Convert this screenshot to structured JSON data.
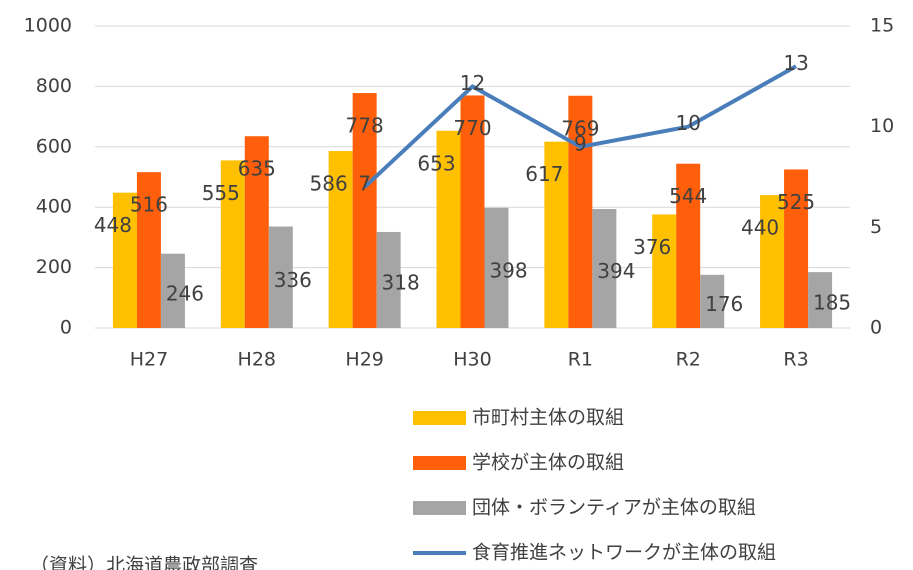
{
  "chart_data": {
    "type": "bar",
    "categories": [
      "H27",
      "H28",
      "H29",
      "H30",
      "R1",
      "R2",
      "R3"
    ],
    "series": [
      {
        "name": "市町村主体の取組",
        "color": "#FFC000",
        "values": [
          448,
          555,
          586,
          653,
          617,
          376,
          440
        ]
      },
      {
        "name": "学校が主体の取組",
        "color": "#FF5F0A",
        "values": [
          516,
          635,
          778,
          770,
          769,
          544,
          525
        ]
      },
      {
        "name": "団体・ボランティアが主体の取組",
        "color": "#A5A5A5",
        "values": [
          246,
          336,
          318,
          398,
          394,
          176,
          185
        ]
      },
      {
        "name": "食育推進ネットワークが主体の取組",
        "color": "#4A7EBB",
        "type": "line",
        "axis": "y2",
        "values": [
          null,
          null,
          7,
          12,
          9,
          10,
          13
        ]
      }
    ],
    "ylim": [
      0,
      1000
    ],
    "yticks": [
      0,
      200,
      400,
      600,
      800,
      1000
    ],
    "y2lim": [
      0,
      15
    ],
    "y2ticks": [
      0,
      5,
      10,
      15
    ],
    "grid": true,
    "legend": "bottom",
    "source": "（資料）北海道農政部調査"
  }
}
